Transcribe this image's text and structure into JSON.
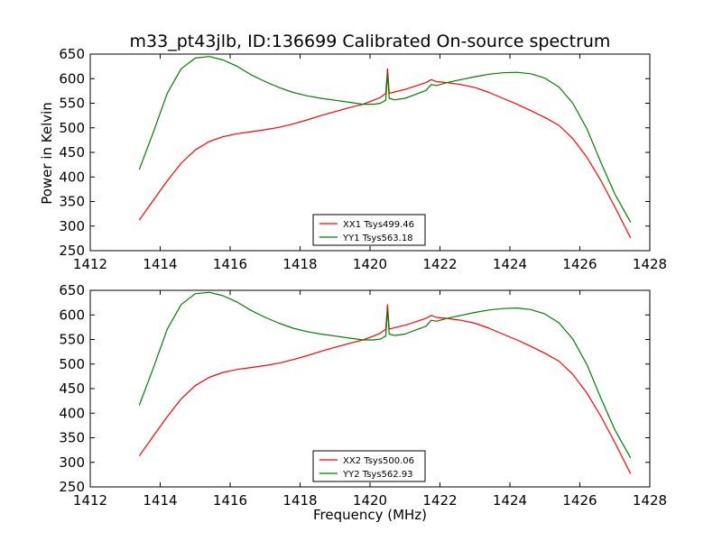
{
  "figure": {
    "title": "m33_pt43jlb, ID:136699 Calibrated On-source spectrum",
    "ylabel": "Power in Kelvin",
    "xlabel": "Frequency (MHz)"
  },
  "chart_data": [
    {
      "type": "line",
      "title": "m33_pt43jlb, ID:136699 Calibrated On-source spectrum",
      "xlabel": "",
      "ylabel": "Power in Kelvin",
      "xlim": [
        1412,
        1428
      ],
      "ylim": [
        250,
        650
      ],
      "xticks": [
        1412,
        1414,
        1416,
        1418,
        1420,
        1422,
        1424,
        1426,
        1428
      ],
      "yticks": [
        250,
        300,
        350,
        400,
        450,
        500,
        550,
        600,
        650
      ],
      "grid": false,
      "legend_position": "bottom-center",
      "x": [
        1413.4,
        1413.8,
        1414.2,
        1414.6,
        1415.0,
        1415.4,
        1415.8,
        1416.2,
        1416.6,
        1417.0,
        1417.4,
        1417.8,
        1418.2,
        1418.6,
        1419.0,
        1419.4,
        1419.8,
        1420.1,
        1420.3,
        1420.45,
        1420.5,
        1420.55,
        1420.7,
        1421.0,
        1421.3,
        1421.6,
        1421.75,
        1421.9,
        1422.2,
        1422.6,
        1423.0,
        1423.4,
        1423.8,
        1424.2,
        1424.6,
        1425.0,
        1425.4,
        1425.8,
        1426.2,
        1426.6,
        1427.0,
        1427.45
      ],
      "series": [
        {
          "name": "XX1 Tsys499.46",
          "color": "#ff0000",
          "values": [
            312,
            352,
            392,
            428,
            455,
            472,
            482,
            488,
            492,
            496,
            501,
            508,
            516,
            525,
            533,
            541,
            548,
            556,
            562,
            570,
            620,
            570,
            573,
            578,
            585,
            592,
            598,
            594,
            592,
            588,
            582,
            572,
            560,
            548,
            535,
            521,
            505,
            478,
            440,
            393,
            339,
            276
          ]
        },
        {
          "name": "YY1 Tsys563.18",
          "color": "#008000",
          "values": [
            415,
            490,
            570,
            620,
            642,
            645,
            638,
            625,
            608,
            594,
            582,
            572,
            565,
            560,
            556,
            552,
            548,
            548,
            550,
            556,
            610,
            560,
            557,
            560,
            568,
            576,
            588,
            586,
            592,
            598,
            604,
            609,
            612,
            613,
            610,
            601,
            583,
            550,
            498,
            430,
            365,
            308
          ]
        }
      ]
    },
    {
      "type": "line",
      "title": "",
      "xlabel": "Frequency (MHz)",
      "ylabel": "",
      "xlim": [
        1412,
        1428
      ],
      "ylim": [
        250,
        650
      ],
      "xticks": [
        1412,
        1414,
        1416,
        1418,
        1420,
        1422,
        1424,
        1426,
        1428
      ],
      "yticks": [
        250,
        300,
        350,
        400,
        450,
        500,
        550,
        600,
        650
      ],
      "grid": false,
      "legend_position": "bottom-center",
      "x": [
        1413.4,
        1413.8,
        1414.2,
        1414.6,
        1415.0,
        1415.4,
        1415.8,
        1416.2,
        1416.6,
        1417.0,
        1417.4,
        1417.8,
        1418.2,
        1418.6,
        1419.0,
        1419.4,
        1419.8,
        1420.1,
        1420.3,
        1420.45,
        1420.5,
        1420.55,
        1420.7,
        1421.0,
        1421.3,
        1421.6,
        1421.75,
        1421.9,
        1422.2,
        1422.6,
        1423.0,
        1423.4,
        1423.8,
        1424.2,
        1424.6,
        1425.0,
        1425.4,
        1425.8,
        1426.2,
        1426.6,
        1427.0,
        1427.45
      ],
      "series": [
        {
          "name": "XX2 Tsys500.06",
          "color": "#ff0000",
          "values": [
            313,
            353,
            393,
            429,
            456,
            473,
            483,
            489,
            493,
            497,
            502,
            509,
            517,
            526,
            534,
            542,
            549,
            557,
            563,
            571,
            621,
            571,
            574,
            579,
            586,
            593,
            599,
            595,
            593,
            589,
            583,
            573,
            561,
            549,
            536,
            522,
            506,
            479,
            441,
            394,
            340,
            277
          ]
        },
        {
          "name": "YY2 Tsys562.93",
          "color": "#008000",
          "values": [
            416,
            491,
            571,
            621,
            643,
            646,
            639,
            626,
            609,
            595,
            583,
            573,
            566,
            561,
            557,
            553,
            549,
            549,
            551,
            557,
            611,
            561,
            558,
            561,
            569,
            577,
            589,
            587,
            593,
            599,
            605,
            610,
            613,
            614,
            611,
            602,
            584,
            551,
            499,
            431,
            366,
            309
          ]
        }
      ]
    }
  ]
}
